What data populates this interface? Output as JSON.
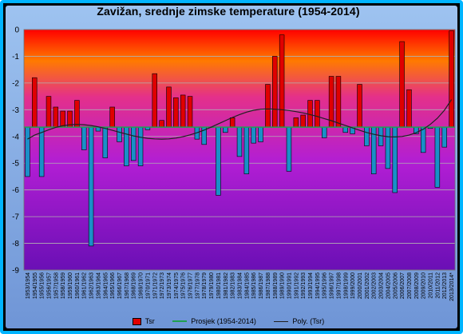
{
  "chart_data": {
    "type": "bar",
    "title": "Zavižan, srednje zimske temperature (1954-2014)",
    "xlabel": "",
    "ylabel": "",
    "ylim": [
      -9,
      0
    ],
    "yticks": [
      0,
      -1,
      -2,
      -3,
      -4,
      -5,
      -6,
      -7,
      -8,
      -9
    ],
    "grid": true,
    "legend_position": "bottom",
    "mean": -3.65,
    "categories": [
      "1953/1954",
      "1954/1955",
      "1955/1956",
      "1956/1957",
      "1957/1958",
      "1958/1959",
      "1959/1960",
      "1960/1961",
      "1961/1962",
      "1962/1963",
      "1963/1964",
      "1964/1965",
      "1965/1966",
      "1966/1967",
      "1967/1968",
      "1968/1969",
      "1969/1970",
      "1970/1971",
      "1971/1972",
      "1972/1973",
      "1973/1974",
      "1974/1975",
      "1975/1976",
      "1976/1977",
      "1977/1978",
      "1978/1979",
      "1979/1980",
      "1980/1981",
      "1981/1982",
      "1982/1983",
      "1983/1984",
      "1984/1985",
      "1985/1986",
      "1986/1987",
      "1987/1988",
      "1988/1989",
      "1989/1990",
      "1990/1991",
      "1991/1992",
      "1992/1993",
      "1993/1994",
      "1994/1995",
      "1995/1996",
      "1996/1997",
      "1997/1998",
      "1998/1999",
      "1999/2000",
      "2000/2001",
      "2001/2002",
      "2002/2003",
      "2003/2004",
      "2004/2005",
      "2005/2006",
      "2006/2007",
      "2007/2008",
      "2008/2009",
      "2009/2010",
      "2010/2011",
      "2011/2012",
      "2012/2013",
      "2013/2014*"
    ],
    "series": [
      {
        "name": "Tsr",
        "type": "bar",
        "color": "#e00000",
        "values": [
          -5.5,
          -1.8,
          -5.5,
          -2.5,
          -2.9,
          -3.05,
          -3.05,
          -2.65,
          -4.5,
          -8.1,
          -3.8,
          -4.8,
          -2.9,
          -4.2,
          -5.1,
          -4.9,
          -5.1,
          -3.75,
          -1.65,
          -3.4,
          -2.15,
          -2.55,
          -2.45,
          -2.5,
          -4.1,
          -4.3,
          -3.65,
          -6.2,
          -3.85,
          -3.3,
          -4.75,
          -5.4,
          -4.25,
          -4.2,
          -2.05,
          -1.0,
          -0.2,
          -5.3,
          -3.3,
          -3.2,
          -2.65,
          -2.65,
          -4.05,
          -1.75,
          -1.75,
          -3.85,
          -3.9,
          -2.05,
          -4.35,
          -5.4,
          -4.35,
          -5.2,
          -6.1,
          -0.45,
          -2.25,
          -3.9,
          -4.6,
          -3.7,
          -5.9,
          -4.4,
          -0.05
        ]
      },
      {
        "name": "Prosjek (1954-2014)",
        "type": "line",
        "color": "#20a050"
      },
      {
        "name": "Poly. (Tsr)",
        "type": "line",
        "color": "#202020",
        "values": [
          -4.1,
          -3.95,
          -3.85,
          -3.75,
          -3.66,
          -3.6,
          -3.56,
          -3.55,
          -3.56,
          -3.59,
          -3.64,
          -3.7,
          -3.77,
          -3.84,
          -3.91,
          -3.98,
          -4.03,
          -4.07,
          -4.09,
          -4.1,
          -4.09,
          -4.06,
          -4.01,
          -3.94,
          -3.86,
          -3.76,
          -3.65,
          -3.53,
          -3.41,
          -3.29,
          -3.18,
          -3.09,
          -3.02,
          -2.98,
          -2.97,
          -2.98,
          -3.0,
          -3.03,
          -3.07,
          -3.12,
          -3.18,
          -3.25,
          -3.33,
          -3.41,
          -3.5,
          -3.59,
          -3.68,
          -3.77,
          -3.85,
          -3.92,
          -3.97,
          -4.01,
          -4.02,
          -4.0,
          -3.95,
          -3.86,
          -3.73,
          -3.55,
          -3.32,
          -3.02,
          -2.62
        ]
      }
    ]
  }
}
